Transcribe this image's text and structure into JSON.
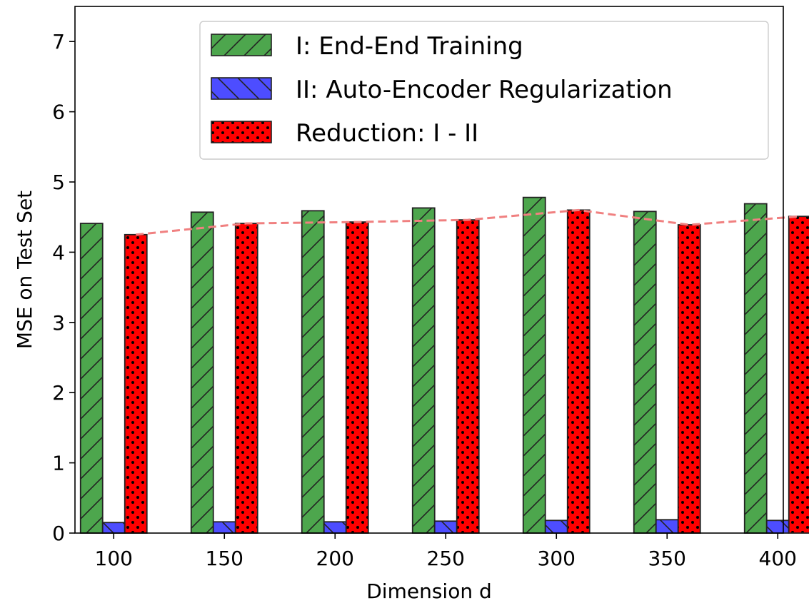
{
  "chart_data": {
    "type": "bar",
    "categories": [
      "100",
      "150",
      "200",
      "250",
      "300",
      "350",
      "400"
    ],
    "series": [
      {
        "name": "I: End-End Training",
        "values": [
          4.41,
          4.57,
          4.59,
          4.63,
          4.78,
          4.58,
          4.69
        ],
        "color": "#4da64d",
        "hatch": "diagonal"
      },
      {
        "name": "II: Auto-Encoder Regularization",
        "values": [
          0.15,
          0.16,
          0.16,
          0.17,
          0.18,
          0.19,
          0.18
        ],
        "color": "#4d4dff",
        "hatch": "backslash"
      },
      {
        "name": "Reduction: I - II",
        "values": [
          4.25,
          4.41,
          4.43,
          4.46,
          4.6,
          4.39,
          4.51
        ],
        "color": "#ff0000",
        "hatch": "dots"
      }
    ],
    "trend_line": {
      "series_index": 2,
      "color": "#f08080",
      "style": "dashed"
    },
    "xlabel": "Dimension d",
    "ylabel": "MSE on Test Set",
    "ylim": [
      0,
      7.5
    ],
    "yticks": [
      0,
      1,
      2,
      3,
      4,
      5,
      6,
      7
    ],
    "grid": false,
    "legend_position": "top-right"
  }
}
